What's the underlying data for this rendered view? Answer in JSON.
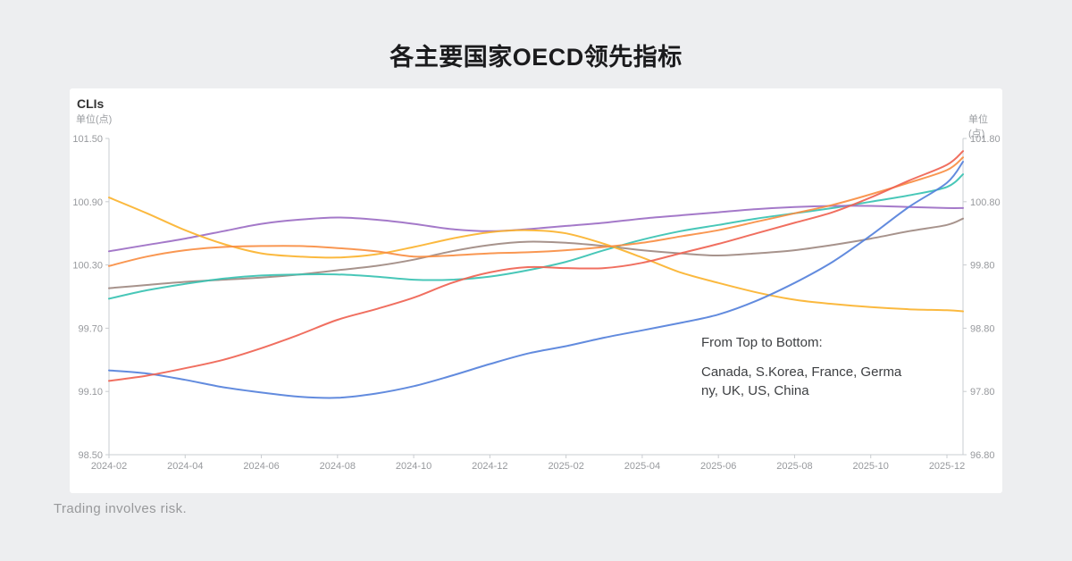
{
  "page": {
    "title": "各主要国家OECD领先指标",
    "footer": "Trading involves risk."
  },
  "chart": {
    "corner_label": "CLIs",
    "unit_label_left": "单位(点)",
    "unit_label_right": "单位(点)",
    "annotation": {
      "heading": "From Top to Bottom:",
      "lines": [
        "Canada, S.Korea, France, Germa",
        "ny, UK, US, China"
      ]
    }
  },
  "chart_data": {
    "type": "line",
    "title": "各主要国家OECD领先指标",
    "x": [
      "2024-02",
      "2024-03",
      "2024-04",
      "2024-05",
      "2024-06",
      "2024-07",
      "2024-08",
      "2024-09",
      "2024-10",
      "2024-11",
      "2024-12",
      "2025-01",
      "2025-02",
      "2025-03",
      "2025-04",
      "2025-05",
      "2025-06",
      "2025-07",
      "2025-08",
      "2025-09",
      "2025-10",
      "2025-11",
      "2025-12",
      "2026-01"
    ],
    "x_tick_labels": [
      "2024-02",
      "2024-04",
      "2024-06",
      "2024-08",
      "2024-10",
      "2024-12",
      "2025-02",
      "2025-04",
      "2025-06",
      "2025-08",
      "2025-10",
      "2025-12"
    ],
    "y_axis_left": {
      "unit": "单位(点)",
      "range": [
        98.5,
        101.5
      ],
      "ticks": [
        "101.50",
        "100.90",
        "100.30",
        "99.70",
        "99.10",
        "98.50"
      ]
    },
    "y_axis_right": {
      "unit": "单位(点)",
      "range": [
        96.8,
        101.8
      ],
      "ticks": [
        "101.80",
        "100.80",
        "99.80",
        "98.80",
        "97.80",
        "96.80"
      ]
    },
    "grid": false,
    "legend_position": "none",
    "order_note": "From Top to Bottom: Canada, S.Korea, France, Germany, UK, US, China",
    "series": [
      {
        "name": "US",
        "color": "#A08A82",
        "axis": "left",
        "values": [
          100.08,
          100.11,
          100.14,
          100.16,
          100.18,
          100.21,
          100.25,
          100.29,
          100.35,
          100.43,
          100.49,
          100.52,
          100.51,
          100.48,
          100.44,
          100.41,
          100.39,
          100.41,
          100.44,
          100.49,
          100.55,
          100.62,
          100.68,
          100.74
        ]
      },
      {
        "name": "Germany",
        "color": "#38C2B2",
        "axis": "left",
        "values": [
          99.98,
          100.06,
          100.12,
          100.17,
          100.2,
          100.21,
          100.21,
          100.19,
          100.16,
          100.16,
          100.19,
          100.25,
          100.33,
          100.44,
          100.54,
          100.62,
          100.68,
          100.74,
          100.79,
          100.84,
          100.9,
          100.96,
          101.04,
          101.16
        ]
      },
      {
        "name": "UK",
        "color": "#9C6EC4",
        "axis": "left",
        "values": [
          100.43,
          100.49,
          100.55,
          100.62,
          100.69,
          100.73,
          100.75,
          100.73,
          100.69,
          100.64,
          100.62,
          100.64,
          100.67,
          100.7,
          100.74,
          100.77,
          100.8,
          100.83,
          100.85,
          100.86,
          100.86,
          100.85,
          100.84,
          100.84
        ]
      },
      {
        "name": "China",
        "color": "#FBB32F",
        "axis": "left",
        "values": [
          100.94,
          100.79,
          100.63,
          100.5,
          100.41,
          100.38,
          100.37,
          100.4,
          100.47,
          100.55,
          100.61,
          100.63,
          100.6,
          100.5,
          100.37,
          100.23,
          100.13,
          100.04,
          99.97,
          99.93,
          99.9,
          99.88,
          99.87,
          99.86
        ]
      },
      {
        "name": "S.Korea",
        "color": "#F98E43",
        "axis": "left",
        "values": [
          100.29,
          100.38,
          100.44,
          100.47,
          100.48,
          100.48,
          100.46,
          100.43,
          100.38,
          100.39,
          100.41,
          100.42,
          100.44,
          100.47,
          100.51,
          100.57,
          100.63,
          100.71,
          100.79,
          100.87,
          100.97,
          101.08,
          101.2,
          101.32
        ]
      },
      {
        "name": "France",
        "color": "#5581DB",
        "axis": "left",
        "values": [
          99.3,
          99.27,
          99.21,
          99.14,
          99.09,
          99.05,
          99.04,
          99.08,
          99.15,
          99.25,
          99.36,
          99.46,
          99.53,
          99.61,
          99.68,
          99.75,
          99.83,
          99.96,
          100.13,
          100.33,
          100.58,
          100.85,
          101.08,
          101.28
        ]
      },
      {
        "name": "Canada",
        "color": "#EF6352",
        "axis": "left",
        "values": [
          99.2,
          99.25,
          99.32,
          99.4,
          99.51,
          99.64,
          99.78,
          99.88,
          99.99,
          100.13,
          100.23,
          100.28,
          100.27,
          100.27,
          100.32,
          100.41,
          100.5,
          100.6,
          100.7,
          100.8,
          100.94,
          101.1,
          101.25,
          101.38
        ]
      }
    ]
  }
}
